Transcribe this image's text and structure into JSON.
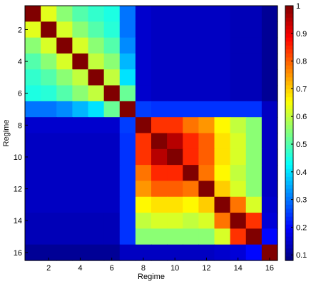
{
  "chart_data": {
    "type": "heatmap",
    "title": "",
    "xlabel": "Regime",
    "ylabel": "Regime",
    "x_categories": [
      1,
      2,
      3,
      4,
      5,
      6,
      7,
      8,
      9,
      10,
      11,
      12,
      13,
      14,
      15,
      16
    ],
    "y_categories": [
      1,
      2,
      3,
      4,
      5,
      6,
      7,
      8,
      9,
      10,
      11,
      12,
      13,
      14,
      15,
      16
    ],
    "x_ticks": [
      2,
      4,
      6,
      8,
      10,
      12,
      14,
      16
    ],
    "y_ticks": [
      2,
      4,
      6,
      8,
      10,
      12,
      14,
      16
    ],
    "colormap": "jet",
    "colorbar": {
      "min": 0.08,
      "max": 1.0,
      "ticks": [
        0.1,
        0.2,
        0.3,
        0.4,
        0.5,
        0.6,
        0.7,
        0.8,
        0.9,
        1
      ],
      "tick_labels": [
        "0.1",
        "0.2",
        "0.3",
        "0.4",
        "0.5",
        "0.6",
        "0.7",
        "0.8",
        "0.9",
        "1"
      ],
      "position": "right"
    },
    "values": [
      [
        1.0,
        0.63,
        0.55,
        0.5,
        0.47,
        0.45,
        0.3,
        0.15,
        0.14,
        0.14,
        0.14,
        0.14,
        0.14,
        0.13,
        0.13,
        0.1
      ],
      [
        0.63,
        1.0,
        0.62,
        0.55,
        0.5,
        0.46,
        0.3,
        0.15,
        0.14,
        0.14,
        0.14,
        0.14,
        0.14,
        0.13,
        0.13,
        0.1
      ],
      [
        0.55,
        0.62,
        1.0,
        0.62,
        0.55,
        0.5,
        0.32,
        0.15,
        0.14,
        0.14,
        0.14,
        0.14,
        0.14,
        0.13,
        0.13,
        0.1
      ],
      [
        0.5,
        0.55,
        0.62,
        1.0,
        0.6,
        0.55,
        0.36,
        0.15,
        0.14,
        0.14,
        0.14,
        0.14,
        0.14,
        0.13,
        0.13,
        0.1
      ],
      [
        0.47,
        0.5,
        0.55,
        0.6,
        1.0,
        0.6,
        0.4,
        0.15,
        0.14,
        0.14,
        0.14,
        0.14,
        0.14,
        0.13,
        0.13,
        0.1
      ],
      [
        0.45,
        0.46,
        0.5,
        0.55,
        0.6,
        1.0,
        0.52,
        0.15,
        0.14,
        0.14,
        0.14,
        0.14,
        0.14,
        0.13,
        0.13,
        0.1
      ],
      [
        0.3,
        0.3,
        0.32,
        0.36,
        0.4,
        0.52,
        1.0,
        0.25,
        0.24,
        0.24,
        0.24,
        0.24,
        0.24,
        0.24,
        0.24,
        0.14
      ],
      [
        0.15,
        0.15,
        0.15,
        0.15,
        0.15,
        0.15,
        0.25,
        1.0,
        0.84,
        0.84,
        0.78,
        0.75,
        0.66,
        0.6,
        0.55,
        0.14
      ],
      [
        0.14,
        0.14,
        0.14,
        0.14,
        0.14,
        0.14,
        0.24,
        0.84,
        1.0,
        0.95,
        0.85,
        0.8,
        0.68,
        0.62,
        0.55,
        0.14
      ],
      [
        0.14,
        0.14,
        0.14,
        0.14,
        0.14,
        0.14,
        0.24,
        0.84,
        0.95,
        1.0,
        0.85,
        0.8,
        0.68,
        0.62,
        0.55,
        0.14
      ],
      [
        0.14,
        0.14,
        0.14,
        0.14,
        0.14,
        0.14,
        0.24,
        0.78,
        0.85,
        0.85,
        1.0,
        0.78,
        0.66,
        0.6,
        0.55,
        0.14
      ],
      [
        0.14,
        0.14,
        0.14,
        0.14,
        0.14,
        0.14,
        0.24,
        0.75,
        0.8,
        0.8,
        0.78,
        1.0,
        0.7,
        0.62,
        0.55,
        0.14
      ],
      [
        0.14,
        0.14,
        0.14,
        0.14,
        0.14,
        0.14,
        0.24,
        0.66,
        0.68,
        0.68,
        0.66,
        0.7,
        1.0,
        0.78,
        0.62,
        0.15
      ],
      [
        0.13,
        0.13,
        0.13,
        0.13,
        0.13,
        0.13,
        0.24,
        0.6,
        0.62,
        0.62,
        0.6,
        0.62,
        0.78,
        1.0,
        0.84,
        0.16
      ],
      [
        0.13,
        0.13,
        0.13,
        0.13,
        0.13,
        0.13,
        0.24,
        0.55,
        0.55,
        0.55,
        0.55,
        0.55,
        0.62,
        0.84,
        1.0,
        0.2
      ],
      [
        0.1,
        0.1,
        0.1,
        0.1,
        0.1,
        0.1,
        0.14,
        0.14,
        0.14,
        0.14,
        0.14,
        0.14,
        0.15,
        0.16,
        0.2,
        1.0
      ]
    ]
  }
}
